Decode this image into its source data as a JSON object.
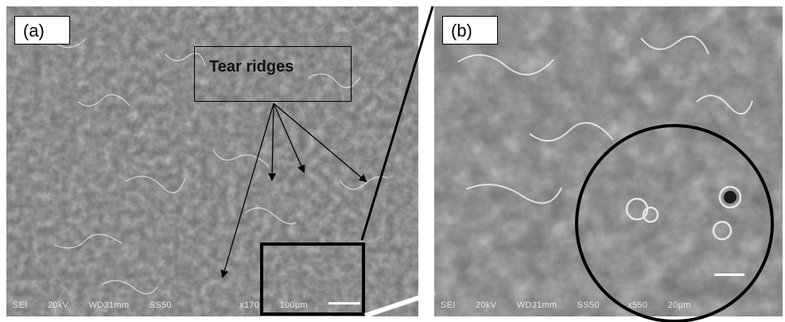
{
  "panel_a": {
    "label": "(a)",
    "annotation": "Tear ridges",
    "databar": {
      "mode": "SEI",
      "voltage": "20kV",
      "wd": "WD31mm",
      "ss": "SS50",
      "mag": "x170",
      "scale": "100µm"
    }
  },
  "panel_b": {
    "label": "(b)",
    "databar": {
      "mode": "SEI",
      "voltage": "20kV",
      "wd": "WD31mm",
      "ss": "SS50",
      "mag": "x550",
      "scale": "20µm"
    }
  },
  "colors": {
    "micrograph_base": "#6f6f6f",
    "ridge_highlight": "#f2f2f2",
    "annotation_ink": "#000000"
  }
}
